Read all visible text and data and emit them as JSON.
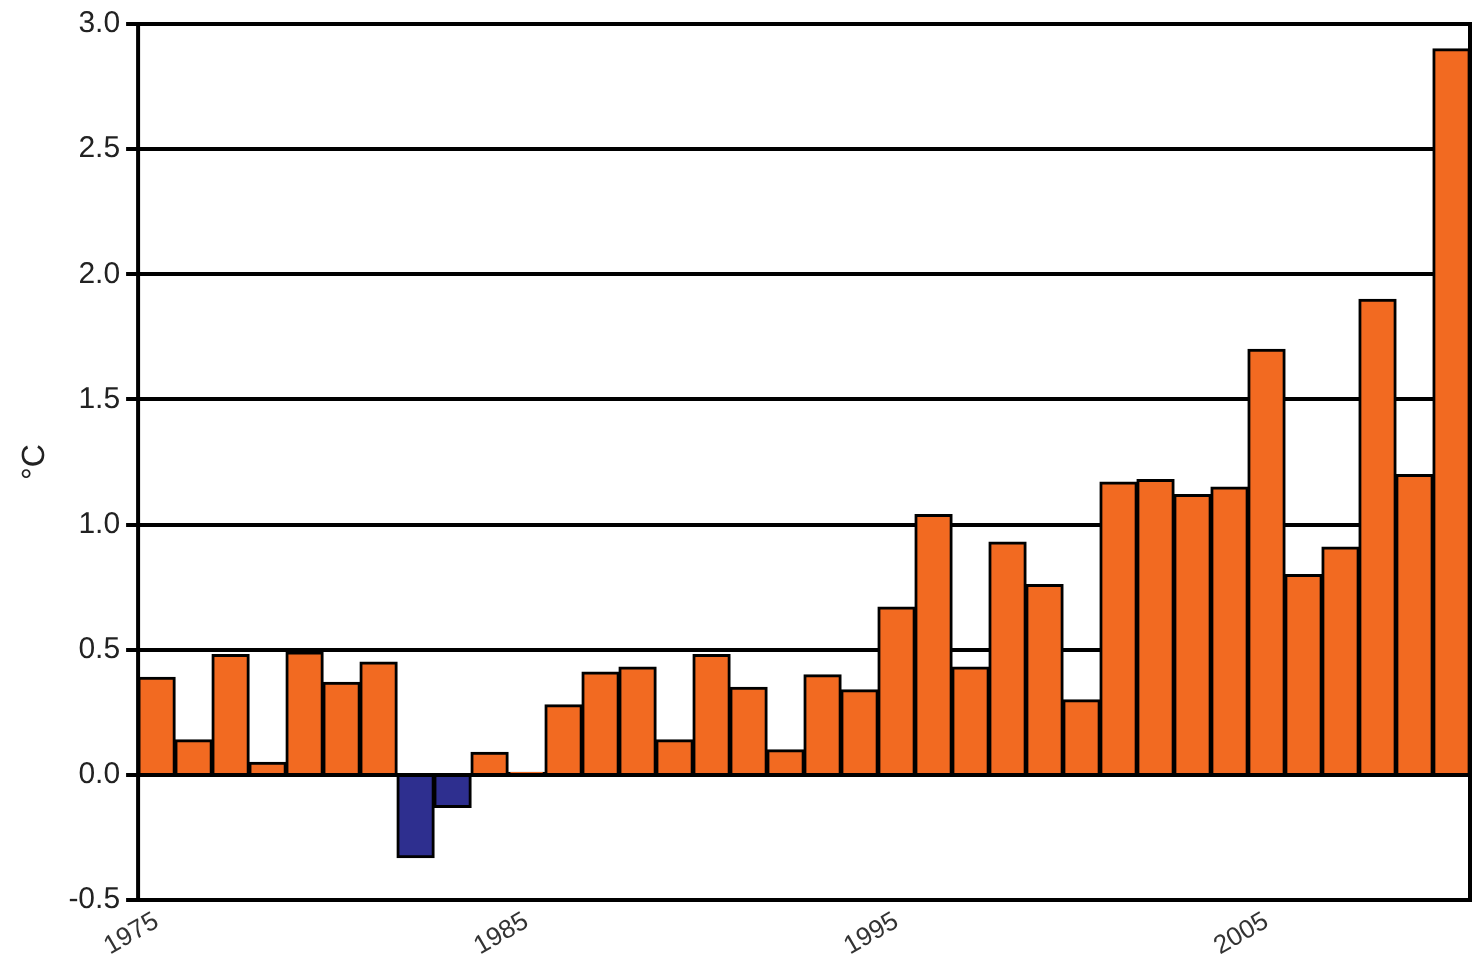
{
  "chart_data": {
    "type": "bar",
    "ylabel": "°C",
    "categories": [
      "1975",
      null,
      null,
      null,
      null,
      null,
      null,
      null,
      null,
      null,
      "1985",
      null,
      null,
      null,
      null,
      null,
      null,
      null,
      null,
      null,
      "1995",
      null,
      null,
      null,
      null,
      null,
      null,
      null,
      null,
      null,
      "2005",
      null,
      null,
      null,
      null,
      null
    ],
    "values": [
      0.39,
      0.14,
      0.48,
      0.05,
      0.49,
      0.37,
      0.45,
      -0.33,
      -0.13,
      0.09,
      0.01,
      0.28,
      0.41,
      0.43,
      0.14,
      0.48,
      0.35,
      0.1,
      0.4,
      0.34,
      0.67,
      1.04,
      0.43,
      0.93,
      0.76,
      0.3,
      1.17,
      1.18,
      1.12,
      1.15,
      1.7,
      0.8,
      0.91,
      1.9,
      1.2,
      2.9
    ],
    "colors": [
      "#f26a21",
      "#f26a21",
      "#f26a21",
      "#f26a21",
      "#f26a21",
      "#f26a21",
      "#f26a21",
      "#2e2f8f",
      "#2e2f8f",
      "#f26a21",
      "#f26a21",
      "#f26a21",
      "#f26a21",
      "#f26a21",
      "#f26a21",
      "#f26a21",
      "#f26a21",
      "#f26a21",
      "#f26a21",
      "#f26a21",
      "#f26a21",
      "#f26a21",
      "#f26a21",
      "#f26a21",
      "#f26a21",
      "#f26a21",
      "#f26a21",
      "#f26a21",
      "#f26a21",
      "#f26a21",
      "#f26a21",
      "#f26a21",
      "#f26a21",
      "#f26a21",
      "#f26a21",
      "#f26a21"
    ],
    "ylim": [
      -0.5,
      3.0
    ],
    "yticks": [
      {
        "value": -0.5,
        "label": "-0.5"
      },
      {
        "value": 0,
        "label": "0.0"
      },
      0.5,
      {
        "value": 1,
        "label": "1.0"
      },
      1.5,
      {
        "value": 2,
        "label": "2.0"
      },
      2.5,
      {
        "value": 3,
        "label": "3.0"
      }
    ],
    "grid": "y",
    "legend": false
  }
}
